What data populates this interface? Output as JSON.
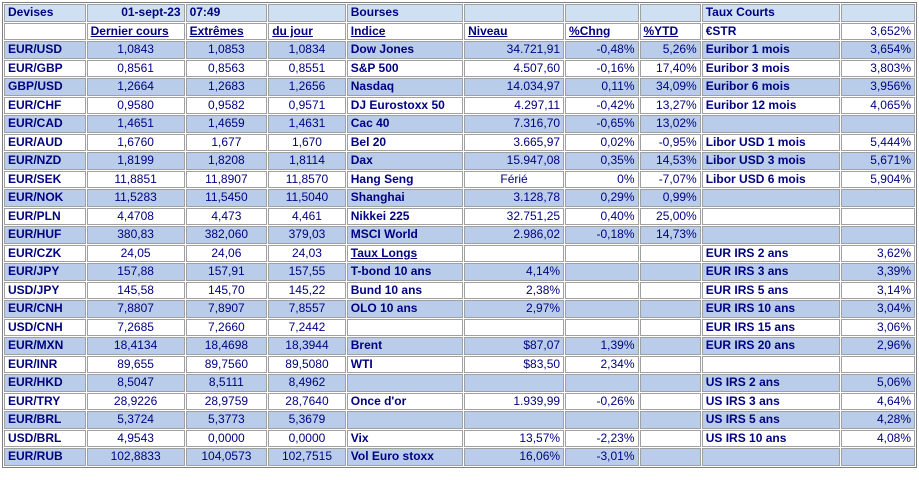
{
  "header": {
    "devises": "Devises",
    "date": "01-sept-23",
    "time": "07:49",
    "bourses": "Bourses",
    "taux_courts": "Taux Courts"
  },
  "subheader": {
    "dernier_cours": "Dernier cours",
    "extremes": "Extrêmes",
    "du_jour": "du jour",
    "indice": "Indice",
    "niveau": "Niveau",
    "chng": "%Chng",
    "ytd": "%YTD",
    "estr_label": "€STR",
    "estr_value": "3,652%"
  },
  "rows": [
    {
      "pair": "EUR/USD",
      "last": "1,0843",
      "high": "1,0853",
      "low": "1,0834",
      "idx": "Dow Jones",
      "lvl": "34.721,91",
      "chg": "-0,48%",
      "ytd": "5,26%",
      "rate": "Euribor 1 mois",
      "rval": "3,654%"
    },
    {
      "pair": "EUR/GBP",
      "last": "0,8561",
      "high": "0,8563",
      "low": "0,8551",
      "idx": "S&P 500",
      "lvl": "4.507,60",
      "chg": "-0,16%",
      "ytd": "17,40%",
      "rate": "Euribor 3 mois",
      "rval": "3,803%"
    },
    {
      "pair": "GBP/USD",
      "last": "1,2664",
      "high": "1,2683",
      "low": "1,2656",
      "idx": "Nasdaq",
      "lvl": "14.034,97",
      "chg": "0,11%",
      "ytd": "34,09%",
      "rate": "Euribor 6 mois",
      "rval": "3,956%"
    },
    {
      "pair": "EUR/CHF",
      "last": "0,9580",
      "high": "0,9582",
      "low": "0,9571",
      "idx": "DJ Eurostoxx 50",
      "lvl": "4.297,11",
      "chg": "-0,42%",
      "ytd": "13,27%",
      "rate": "Euribor 12 mois",
      "rval": "4,065%"
    },
    {
      "pair": "EUR/CAD",
      "last": "1,4651",
      "high": "1,4659",
      "low": "1,4631",
      "idx": "Cac 40",
      "lvl": "7.316,70",
      "chg": "-0,65%",
      "ytd": "13,02%",
      "rate": "",
      "rval": ""
    },
    {
      "pair": "EUR/AUD",
      "last": "1,6760",
      "high": "1,677",
      "low": "1,670",
      "idx": "Bel 20",
      "lvl": "3.665,97",
      "chg": "0,02%",
      "ytd": "-0,95%",
      "rate": "Libor USD 1 mois",
      "rval": "5,444%"
    },
    {
      "pair": "EUR/NZD",
      "last": "1,8199",
      "high": "1,8208",
      "low": "1,8114",
      "idx": "Dax",
      "lvl": "15.947,08",
      "chg": "0,35%",
      "ytd": "14,53%",
      "rate": "Libor USD 3 mois",
      "rval": "5,671%"
    },
    {
      "pair": "EUR/SEK",
      "last": "11,8851",
      "high": "11,8907",
      "low": "11,8570",
      "idx": "Hang Seng",
      "lvl": "Férié",
      "chg": "0%",
      "ytd": "-7,07%",
      "rate": "Libor USD 6 mois",
      "rval": "5,904%"
    },
    {
      "pair": "EUR/NOK",
      "last": "11,5283",
      "high": "11,5450",
      "low": "11,5040",
      "idx": "Shanghai",
      "lvl": "3.128,78",
      "chg": "0,29%",
      "ytd": "0,99%",
      "rate": "",
      "rval": ""
    },
    {
      "pair": "EUR/PLN",
      "last": "4,4708",
      "high": "4,473",
      "low": "4,461",
      "idx": "Nikkei 225",
      "lvl": "32.751,25",
      "chg": "0,40%",
      "ytd": "25,00%",
      "rate": "",
      "rval": ""
    },
    {
      "pair": "EUR/HUF",
      "last": "380,83",
      "high": "382,060",
      "low": "379,03",
      "idx": "MSCI World",
      "lvl": "2.986,02",
      "chg": "-0,18%",
      "ytd": "14,73%",
      "rate": "",
      "rval": ""
    },
    {
      "pair": "EUR/CZK",
      "last": "24,05",
      "high": "24,06",
      "low": "24,03",
      "idx": "Taux Longs",
      "lvl": "",
      "chg": "",
      "ytd": "",
      "rate": "EUR IRS 2 ans",
      "rval": "3,62%"
    },
    {
      "pair": "EUR/JPY",
      "last": "157,88",
      "high": "157,91",
      "low": "157,55",
      "idx": "T-bond 10 ans",
      "lvl": "4,14%",
      "chg": "",
      "ytd": "",
      "rate": "EUR IRS 3 ans",
      "rval": "3,39%"
    },
    {
      "pair": "USD/JPY",
      "last": "145,58",
      "high": "145,70",
      "low": "145,22",
      "idx": "Bund 10 ans",
      "lvl": "2,38%",
      "chg": "",
      "ytd": "",
      "rate": "EUR IRS 5 ans",
      "rval": "3,14%"
    },
    {
      "pair": "EUR/CNH",
      "last": "7,8807",
      "high": "7,8907",
      "low": "7,8557",
      "idx": "OLO 10 ans",
      "lvl": "2,97%",
      "chg": "",
      "ytd": "",
      "rate": "EUR IRS 10 ans",
      "rval": "3,04%"
    },
    {
      "pair": "USD/CNH",
      "last": "7,2685",
      "high": "7,2660",
      "low": "7,2442",
      "idx": "",
      "lvl": "",
      "chg": "",
      "ytd": "",
      "rate": "EUR IRS 15 ans",
      "rval": "3,06%"
    },
    {
      "pair": "EUR/MXN",
      "last": "18,4134",
      "high": "18,4698",
      "low": "18,3944",
      "idx": "Brent",
      "lvl": "$87,07",
      "chg": "1,39%",
      "ytd": "",
      "rate": "EUR IRS 20 ans",
      "rval": "2,96%"
    },
    {
      "pair": "EUR/INR",
      "last": "89,655",
      "high": "89,7560",
      "low": "89,5080",
      "idx": "WTI",
      "lvl": "$83,50",
      "chg": "2,34%",
      "ytd": "",
      "rate": "",
      "rval": ""
    },
    {
      "pair": "EUR/HKD",
      "last": "8,5047",
      "high": "8,5111",
      "low": "8,4962",
      "idx": "",
      "lvl": "",
      "chg": "",
      "ytd": "",
      "rate": "US IRS 2 ans",
      "rval": "5,06%"
    },
    {
      "pair": "EUR/TRY",
      "last": "28,9226",
      "high": "28,9759",
      "low": "28,7640",
      "idx": "Once d'or",
      "lvl": "1.939,99",
      "chg": "-0,26%",
      "ytd": "",
      "rate": "US IRS 3 ans",
      "rval": "4,64%"
    },
    {
      "pair": "EUR/BRL",
      "last": "5,3724",
      "high": "5,3773",
      "low": "5,3679",
      "idx": "",
      "lvl": "",
      "chg": "",
      "ytd": "",
      "rate": "US IRS 5 ans",
      "rval": "4,28%"
    },
    {
      "pair": "USD/BRL",
      "last": "4,9543",
      "high": "0,0000",
      "low": "0,0000",
      "idx": "Vix",
      "lvl": "13,57%",
      "chg": "-2,23%",
      "ytd": "",
      "rate": "US IRS 10 ans",
      "rval": "4,08%"
    },
    {
      "pair": "EUR/RUB",
      "last": "102,8833",
      "high": "104,0573",
      "low": "102,7515",
      "idx": "Vol Euro stoxx",
      "lvl": "16,06%",
      "chg": "-3,01%",
      "ytd": "",
      "rate": "",
      "rval": ""
    }
  ]
}
